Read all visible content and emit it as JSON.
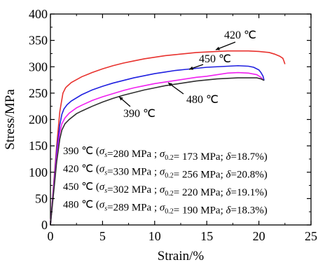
{
  "chart_data": {
    "type": "line",
    "title": "",
    "xlabel": "Strain/%",
    "ylabel": "Stress/MPa",
    "xlim": [
      0,
      25
    ],
    "ylim": [
      0,
      400
    ],
    "xticks": [
      "0",
      "5",
      "10",
      "15",
      "20",
      "25"
    ],
    "yticks": [
      "0",
      "50",
      "100",
      "150",
      "200",
      "250",
      "300",
      "350",
      "400"
    ],
    "grid": false,
    "series": [
      {
        "name": "420 ℃",
        "color": "#e8322e",
        "x": [
          0,
          0.3,
          0.6,
          0.9,
          1.2,
          1.45,
          1.6,
          2,
          3,
          4,
          5,
          6,
          7,
          8,
          9,
          10,
          11,
          12,
          13,
          14,
          15,
          16,
          17,
          18,
          19,
          20,
          21,
          21.5,
          22,
          22.3,
          22.4,
          22.5
        ],
        "y": [
          0,
          75,
          150,
          215,
          250,
          260,
          263,
          270,
          281,
          289,
          296,
          302,
          307,
          311,
          315,
          318,
          321,
          323,
          325,
          327,
          328,
          329,
          330,
          330,
          330,
          329,
          327,
          324,
          320,
          316,
          311,
          305
        ]
      },
      {
        "name": "450 ℃",
        "color": "#2020e0",
        "x": [
          0,
          0.3,
          0.6,
          0.9,
          1.1,
          1.3,
          1.6,
          2,
          3,
          4,
          5,
          6,
          7,
          8,
          9,
          10,
          11,
          12,
          13,
          14,
          15,
          16,
          17,
          18,
          19,
          19.5,
          20,
          20.2,
          20.4,
          20.5
        ],
        "y": [
          0,
          70,
          140,
          190,
          210,
          220,
          228,
          235,
          247,
          256,
          263,
          269,
          274,
          279,
          283,
          287,
          290,
          293,
          295,
          297,
          299,
          300,
          301,
          302,
          301,
          299,
          294,
          289,
          282,
          274
        ]
      },
      {
        "name": "480 ℃",
        "color": "#f020f0",
        "x": [
          0,
          0.3,
          0.6,
          0.9,
          1.1,
          1.4,
          1.8,
          2.5,
          3,
          4,
          5,
          6,
          7,
          8,
          9,
          10,
          11,
          12,
          13,
          14,
          15,
          16,
          17,
          18,
          19,
          19.8,
          20.2,
          20.4
        ],
        "y": [
          0,
          65,
          130,
          175,
          192,
          203,
          212,
          222,
          227,
          236,
          243,
          249,
          255,
          260,
          264,
          268,
          271,
          274,
          277,
          280,
          282,
          285,
          288,
          289,
          288,
          285,
          280,
          275
        ]
      },
      {
        "name": "390 ℃",
        "color": "#303030",
        "x": [
          0,
          0.3,
          0.6,
          0.9,
          1.1,
          1.4,
          1.8,
          2.5,
          3,
          4,
          5,
          6,
          7,
          8,
          9,
          10,
          11,
          12,
          13,
          14,
          15,
          16,
          17,
          18,
          19,
          19.8,
          20.2,
          20.5
        ],
        "y": [
          0,
          60,
          120,
          163,
          180,
          192,
          200,
          211,
          216,
          225,
          233,
          240,
          246,
          251,
          256,
          260,
          264,
          267,
          270,
          273,
          275,
          277,
          278,
          279,
          279,
          279,
          277,
          274
        ]
      }
    ],
    "curve_labels": [
      {
        "text": "420 ℃",
        "series": "420 ℃"
      },
      {
        "text": "450 ℃",
        "series": "450 ℃"
      },
      {
        "text": "480 ℃",
        "series": "480 ℃"
      },
      {
        "text": "390 ℃",
        "series": "390 ℃"
      }
    ],
    "annotations": [
      {
        "temp": "390 ℃",
        "sigma_s": "280 MPa",
        "sigma_02": "173 MPa",
        "delta": "18.7%"
      },
      {
        "temp": "420 ℃",
        "sigma_s": "330 MPa",
        "sigma_02": "256 MPa",
        "delta": "20.8%"
      },
      {
        "temp": "450 ℃",
        "sigma_s": "302 MPa",
        "sigma_02": "220 MPa",
        "delta": "19.1%"
      },
      {
        "temp": "480 ℃",
        "sigma_s": "289 MPa",
        "sigma_02": "190 MPa",
        "delta": "18.3%"
      }
    ]
  }
}
